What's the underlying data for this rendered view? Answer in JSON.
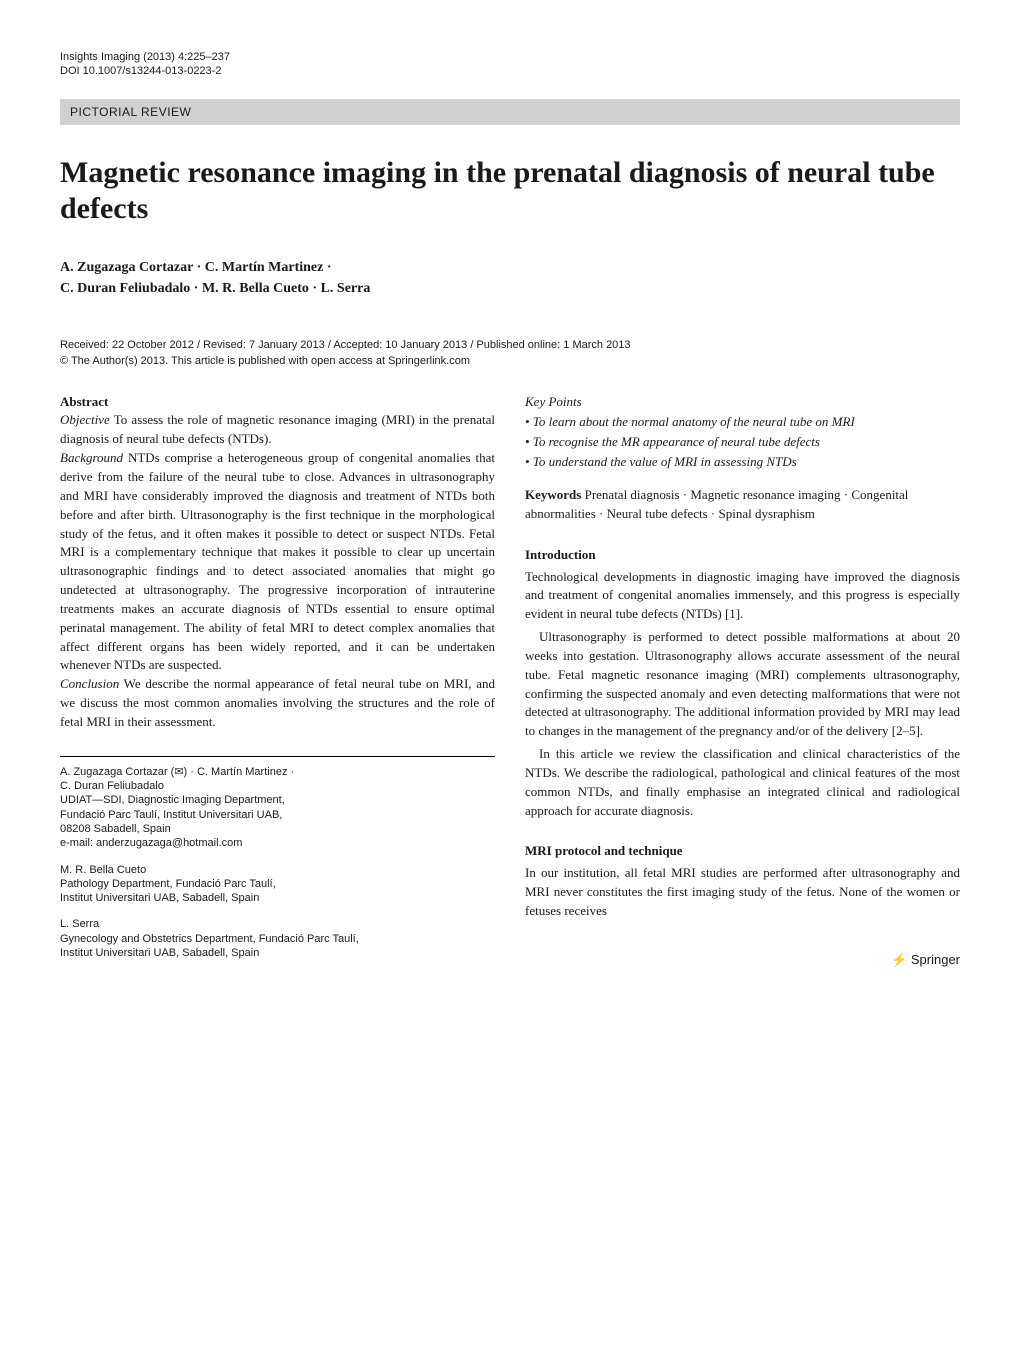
{
  "journal": {
    "citation": "Insights Imaging (2013) 4:225–237",
    "doi": "DOI 10.1007/s13244-013-0223-2"
  },
  "section_banner": "PICTORIAL REVIEW",
  "title": "Magnetic resonance imaging in the prenatal diagnosis of neural tube defects",
  "authors_line1": "A. Zugazaga Cortazar · C. Martín Martinez ·",
  "authors_line2": "C. Duran Feliubadalo · M. R. Bella Cueto · L. Serra",
  "dates": "Received: 22 October 2012 / Revised: 7 January 2013 / Accepted: 10 January 2013 / Published online: 1 March 2013",
  "copyright": "© The Author(s) 2013. This article is published with open access at Springerlink.com",
  "abstract": {
    "label": "Abstract",
    "objective_label": "Objective",
    "objective": " To assess the role of magnetic resonance imaging (MRI) in the prenatal diagnosis of neural tube defects (NTDs).",
    "background_label": "Background",
    "background": " NTDs comprise a heterogeneous group of congenital anomalies that derive from the failure of the neural tube to close. Advances in ultrasonography and MRI have considerably improved the diagnosis and treatment of NTDs both before and after birth. Ultrasonography is the first technique in the morphological study of the fetus, and it often makes it possible to detect or suspect NTDs. Fetal MRI is a complementary technique that makes it possible to clear up uncertain ultrasonographic findings and to detect associated anomalies that might go undetected at ultrasonography. The progressive incorporation of intrauterine treatments makes an accurate diagnosis of NTDs essential to ensure optimal perinatal management. The ability of fetal MRI to detect complex anomalies that affect different organs has been widely reported, and it can be undertaken whenever NTDs are suspected.",
    "conclusion_label": "Conclusion",
    "conclusion": " We describe the normal appearance of fetal neural tube on MRI, and we discuss the most common anomalies involving the structures and the role of fetal MRI in their assessment."
  },
  "key_points": {
    "heading": "Key Points",
    "items": [
      "• To learn about the normal anatomy of the neural tube on MRI",
      "• To recognise the MR appearance of neural tube defects",
      "• To understand the value of MRI in assessing NTDs"
    ]
  },
  "keywords": {
    "label": "Keywords",
    "text": " Prenatal diagnosis · Magnetic resonance imaging · Congenital abnormalities · Neural tube defects · Spinal dysraphism"
  },
  "introduction": {
    "heading": "Introduction",
    "p1": "Technological developments in diagnostic imaging have improved the diagnosis and treatment of congenital anomalies immensely, and this progress is especially evident in neural tube defects (NTDs) [1].",
    "p2": "Ultrasonography is performed to detect possible malformations at about 20 weeks into gestation. Ultrasonography allows accurate assessment of the neural tube. Fetal magnetic resonance imaging (MRI) complements ultrasonography, confirming the suspected anomaly and even detecting malformations that were not detected at ultrasonography. The additional information provided by MRI may lead to changes in the management of the pregnancy and/or of the delivery [2–5].",
    "p3": "In this article we review the classification and clinical characteristics of the NTDs. We describe the radiological, pathological and clinical features of the most common NTDs, and finally emphasise an integrated clinical and radiological approach for accurate diagnosis."
  },
  "protocol": {
    "heading": "MRI protocol and technique",
    "p1": "In our institution, all fetal MRI studies are performed after ultrasonography and MRI never constitutes the first imaging study of the fetus. None of the women or fetuses receives"
  },
  "affiliations": {
    "group1": {
      "l1": "A. Zugazaga Cortazar (✉) · C. Martín Martinez ·",
      "l2": "C. Duran Feliubadalo",
      "l3": "UDIAT—SDI, Diagnostic Imaging Department,",
      "l4": "Fundació Parc Taulí, Institut Universitari UAB,",
      "l5": "08208 Sabadell, Spain",
      "l6": "e-mail: anderzugazaga@hotmail.com"
    },
    "group2": {
      "l1": "M. R. Bella Cueto",
      "l2": "Pathology Department, Fundació Parc Taulí,",
      "l3": "Institut Universitari UAB, Sabadell, Spain"
    },
    "group3": {
      "l1": "L. Serra",
      "l2": "Gynecology and Obstetrics Department, Fundació Parc Taulí,",
      "l3": "Institut Universitari UAB, Sabadell, Spain"
    }
  },
  "publisher_logo": "⚡ Springer"
}
